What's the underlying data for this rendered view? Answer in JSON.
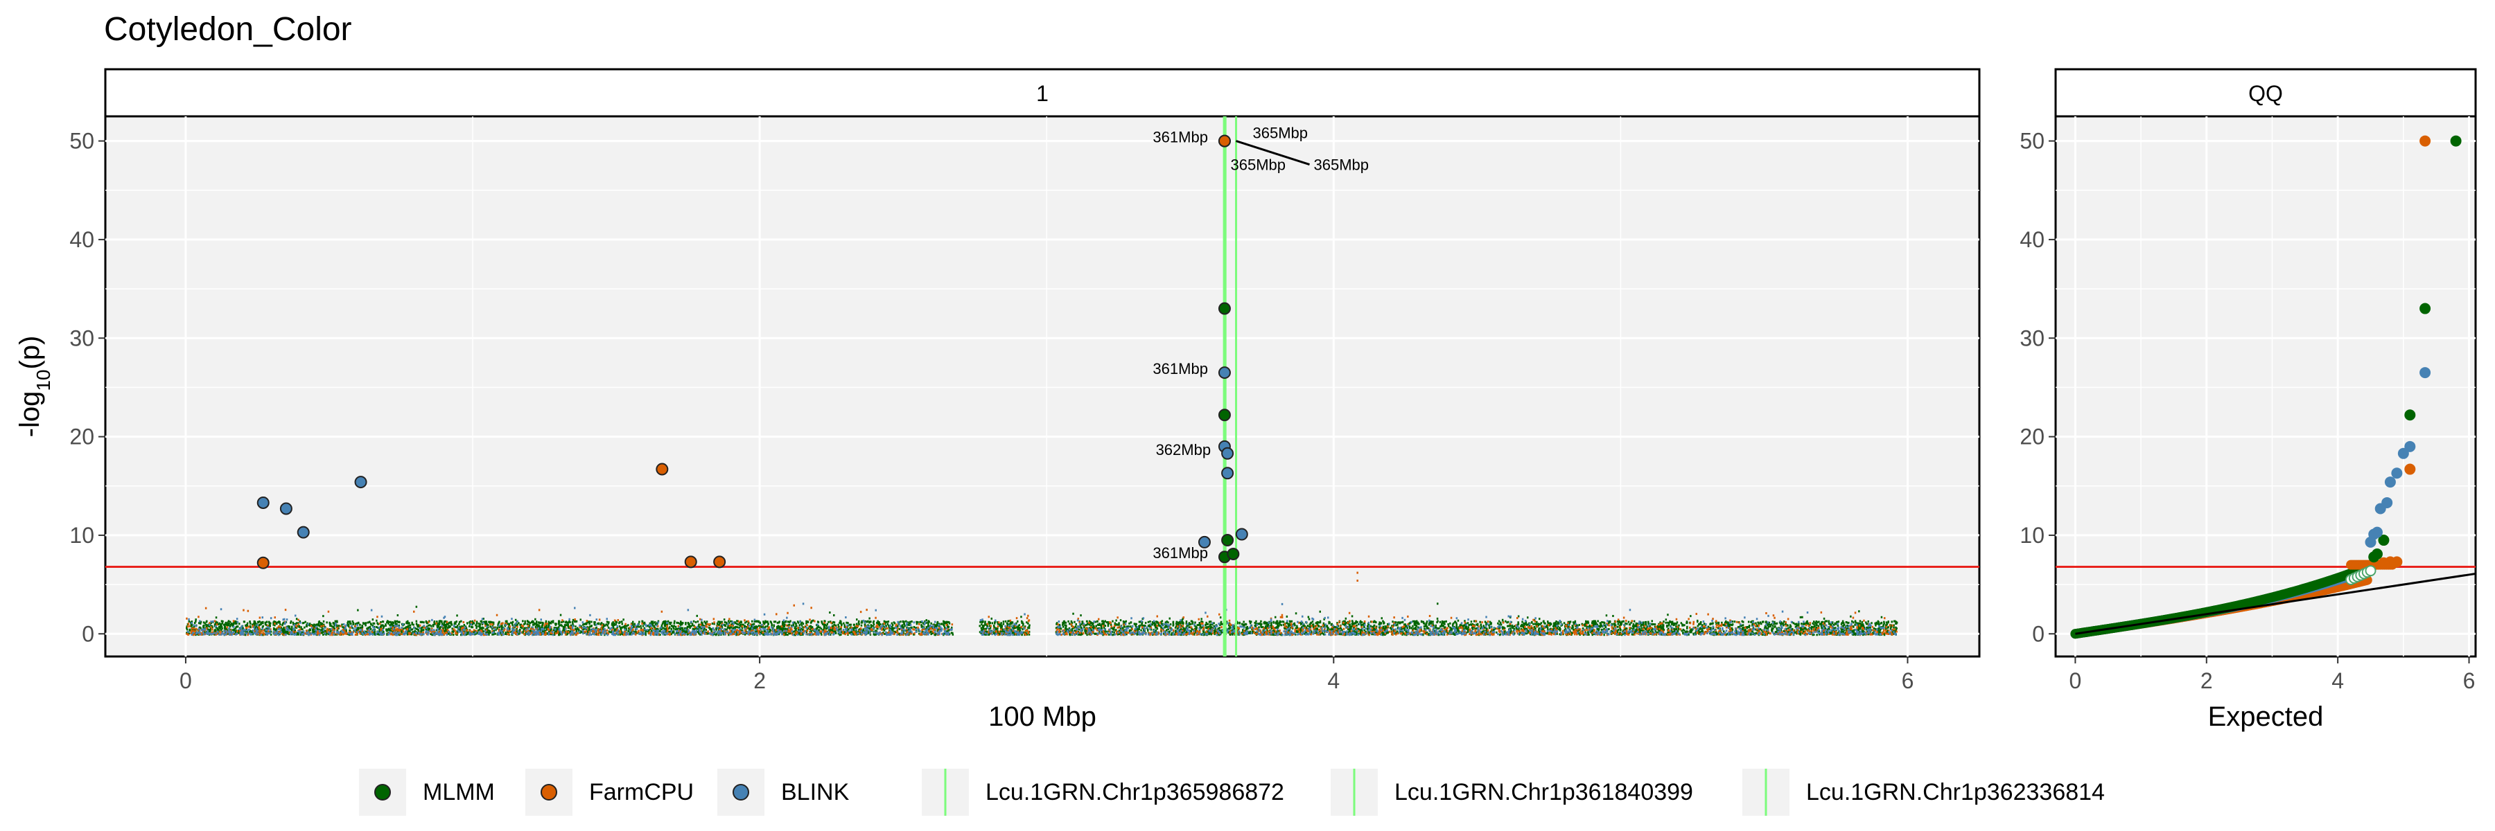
{
  "title": "Cotyledon_Color",
  "colors": {
    "MLMM": "#006400",
    "FarmCPU": "#D95F02",
    "BLINK": "#4682B4",
    "threshold": "#E8231E",
    "gene_line": "#7CFC7C",
    "panel_bg": "#F2F2F2",
    "strip_bg": "#FFFFFF"
  },
  "chart_data": [
    {
      "type": "scatter",
      "panel": "manhattan",
      "strip_label": "1",
      "xlabel": "100 Mbp",
      "ylabel": "-log10(p)",
      "ylabel_main": "-log",
      "ylabel_sub": "10",
      "ylabel_rest": "(p)",
      "xlim": [
        -0.28,
        6.25
      ],
      "ylim": [
        -2.3,
        52.5
      ],
      "x_ticks": [
        0,
        2,
        4,
        6
      ],
      "y_ticks": [
        0,
        10,
        20,
        30,
        40,
        50
      ],
      "grid": true,
      "threshold": 6.8,
      "background_points": {
        "note_visible": "dense sub-threshold SNP cloud across 0–5.96 (100 Mbp), values roughly 0–4",
        "x_range": [
          0.0,
          5.96
        ],
        "gaps": [
          [
            2.67,
            2.76
          ],
          [
            2.94,
            3.03
          ]
        ],
        "typical_max": 3.5
      },
      "series": [
        {
          "name": "MLMM",
          "points": [
            {
              "x": 3.62,
              "y": 50.0
            },
            {
              "x": 3.62,
              "y": 33.0
            },
            {
              "x": 3.62,
              "y": 22.2
            },
            {
              "x": 3.63,
              "y": 9.5
            },
            {
              "x": 3.62,
              "y": 7.8
            },
            {
              "x": 3.65,
              "y": 8.1
            }
          ]
        },
        {
          "name": "FarmCPU",
          "points": [
            {
              "x": 3.62,
              "y": 50.0
            },
            {
              "x": 0.27,
              "y": 7.2
            },
            {
              "x": 1.66,
              "y": 16.7
            },
            {
              "x": 1.76,
              "y": 7.3
            },
            {
              "x": 1.86,
              "y": 7.3
            }
          ]
        },
        {
          "name": "BLINK",
          "points": [
            {
              "x": 0.27,
              "y": 13.3
            },
            {
              "x": 0.35,
              "y": 12.7
            },
            {
              "x": 0.41,
              "y": 10.3
            },
            {
              "x": 0.61,
              "y": 15.4
            },
            {
              "x": 3.62,
              "y": 26.5
            },
            {
              "x": 3.62,
              "y": 19.0
            },
            {
              "x": 3.63,
              "y": 18.3
            },
            {
              "x": 3.63,
              "y": 16.3
            },
            {
              "x": 3.55,
              "y": 9.3
            },
            {
              "x": 3.68,
              "y": 10.1
            }
          ]
        }
      ],
      "gene_lines": [
        3.618,
        3.623,
        3.66
      ],
      "annotations": [
        {
          "text": "361Mbp",
          "x": 3.62,
          "y": 50.0,
          "side": "left"
        },
        {
          "text": "365Mbp",
          "x": 3.66,
          "y": 50.0,
          "side": "right-up"
        },
        {
          "text": "365Mbp",
          "x": 3.66,
          "y": 50.0,
          "side": "below"
        },
        {
          "text": "365Mbp",
          "x": 3.66,
          "y": 50.0,
          "side": "right-down"
        },
        {
          "text": "361Mbp",
          "x": 3.62,
          "y": 26.5,
          "side": "left"
        },
        {
          "text": "362Mbp",
          "x": 3.63,
          "y": 18.3,
          "side": "left"
        },
        {
          "text": "361Mbp",
          "x": 3.62,
          "y": 7.8,
          "side": "left"
        }
      ]
    },
    {
      "type": "scatter",
      "panel": "qq",
      "strip_label": "QQ",
      "xlabel": "Expected",
      "ylabel": "",
      "xlim": [
        -0.3,
        6.1
      ],
      "ylim": [
        -2.3,
        52.5
      ],
      "x_ticks": [
        0,
        2,
        4,
        6
      ],
      "y_ticks": [
        0,
        10,
        20,
        30,
        40,
        50
      ],
      "threshold": 6.8,
      "reference_line": {
        "slope": 1,
        "intercept": 0
      },
      "series": [
        {
          "name": "MLMM",
          "top_points": [
            [
              5.8,
              50.0
            ],
            [
              5.33,
              33.0
            ],
            [
              5.1,
              22.2
            ],
            [
              4.7,
              9.5
            ],
            [
              4.6,
              8.1
            ],
            [
              4.55,
              7.8
            ]
          ]
        },
        {
          "name": "FarmCPU",
          "top_points": [
            [
              5.33,
              50.0
            ],
            [
              5.1,
              16.7
            ],
            [
              4.9,
              7.3
            ],
            [
              4.8,
              7.3
            ],
            [
              4.7,
              7.2
            ]
          ]
        },
        {
          "name": "BLINK",
          "top_points": [
            [
              5.33,
              26.5
            ],
            [
              5.1,
              19.0
            ],
            [
              5.0,
              18.3
            ],
            [
              4.9,
              16.3
            ],
            [
              4.8,
              15.4
            ],
            [
              4.75,
              13.3
            ],
            [
              4.65,
              12.7
            ],
            [
              4.6,
              10.3
            ],
            [
              4.55,
              10.1
            ],
            [
              4.5,
              9.3
            ]
          ]
        }
      ]
    }
  ],
  "legend": {
    "series": [
      {
        "label": "MLMM",
        "key": "MLMM"
      },
      {
        "label": "FarmCPU",
        "key": "FarmCPU"
      },
      {
        "label": "BLINK",
        "key": "BLINK"
      }
    ],
    "genes": [
      {
        "label": "Lcu.1GRN.Chr1p365986872"
      },
      {
        "label": "Lcu.1GRN.Chr1p361840399"
      },
      {
        "label": "Lcu.1GRN.Chr1p362336814"
      }
    ]
  }
}
